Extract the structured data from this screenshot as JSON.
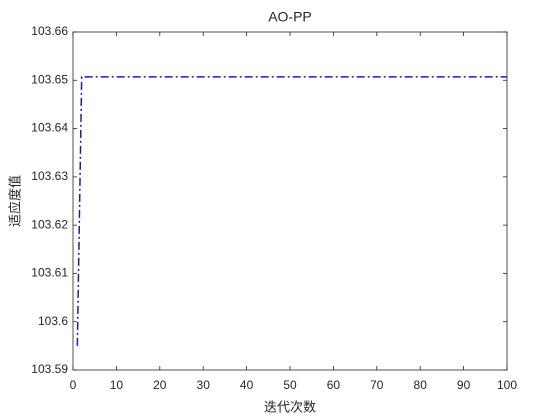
{
  "chart_data": {
    "type": "line",
    "title": "AO-PP",
    "xlabel": "迭代次数",
    "ylabel": "适应度值",
    "x": [
      1,
      2,
      100
    ],
    "series": [
      {
        "name": "AO-PP",
        "color": "#1c1ca8",
        "values": [
          103.595,
          103.6507,
          103.6507
        ]
      }
    ],
    "xlim": [
      0,
      100
    ],
    "xticks": [
      0,
      10,
      20,
      30,
      40,
      50,
      60,
      70,
      80,
      90,
      100
    ],
    "ylim": [
      103.59,
      103.66
    ],
    "yticks": [
      103.59,
      103.6,
      103.61,
      103.62,
      103.63,
      103.64,
      103.65,
      103.66
    ],
    "grid": false,
    "line_style": "dashdot"
  }
}
